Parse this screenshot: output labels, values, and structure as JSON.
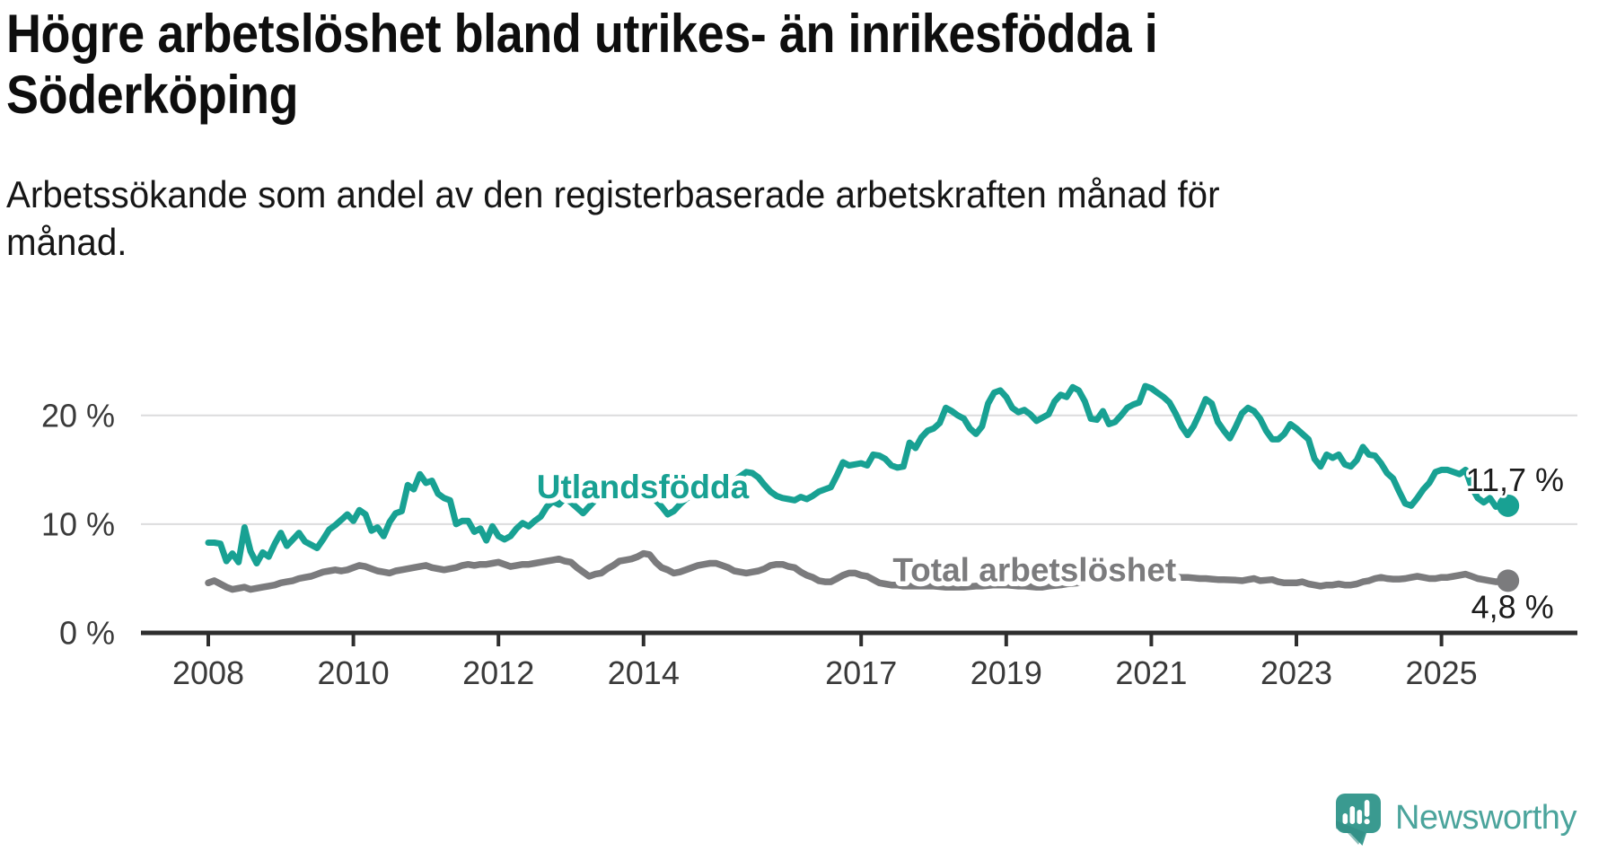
{
  "header": {
    "title_lines": [
      "Högre arbetslöshet bland utrikes- än inrikesfödda i",
      "Söderköping"
    ],
    "subtitle_lines": [
      "Arbetssökande som andel av den registerbaserade arbetskraften månad för",
      "månad."
    ]
  },
  "chart_data": {
    "type": "line",
    "title": "Högre arbetslöshet bland utrikes- än inrikesfödda i Söderköping",
    "subtitle": "Arbetssökande som andel av den registerbaserade arbetskraften månad för månad.",
    "grid": "horizontal-only",
    "legend": "inline-series-labels",
    "x_axis": {
      "start_year": 2008,
      "step_months": 1,
      "tick_years": [
        2008,
        2010,
        2012,
        2014,
        2017,
        2019,
        2021,
        2023,
        2025
      ],
      "tick_labels": [
        "2008",
        "2010",
        "2012",
        "2014",
        "2017",
        "2019",
        "2021",
        "2023",
        "2025"
      ]
    },
    "y_axis": {
      "unit": "%",
      "ylim": [
        0,
        24
      ],
      "ticks": [
        {
          "value": 0,
          "label": "0 %"
        },
        {
          "value": 10,
          "label": "10 %"
        },
        {
          "value": 20,
          "label": "20 %"
        }
      ]
    },
    "series": [
      {
        "name": "Utlandsfödda",
        "color": "#18A193",
        "end_value": 11.7,
        "end_label": "11,7 %",
        "label_anchor": {
          "year": 2013.99,
          "value": 13.4
        },
        "values": [
          8.3,
          8.3,
          8.2,
          6.6,
          7.3,
          6.5,
          9.7,
          7.5,
          6.4,
          7.4,
          7.0,
          8.2,
          9.2,
          8.0,
          8.6,
          9.2,
          8.4,
          8.1,
          7.8,
          8.6,
          9.5,
          9.9,
          10.4,
          10.9,
          10.3,
          11.3,
          10.9,
          9.4,
          9.7,
          8.9,
          10.2,
          11.0,
          11.2,
          13.6,
          13.2,
          14.6,
          13.8,
          14.0,
          12.8,
          12.4,
          12.2,
          10.0,
          10.3,
          10.3,
          9.3,
          9.6,
          8.5,
          9.8,
          8.9,
          8.6,
          8.9,
          9.6,
          10.1,
          9.8,
          10.3,
          10.7,
          11.6,
          12.1,
          11.8,
          12.4,
          12.0,
          11.5,
          11.0,
          11.6,
          12.2,
          12.8,
          12.5,
          12.9,
          13.2,
          12.8,
          13.0,
          13.3,
          13.0,
          12.6,
          12.2,
          11.6,
          10.9,
          11.2,
          11.8,
          12.3,
          12.7,
          12.4,
          12.9,
          13.2,
          13.0,
          13.3,
          13.6,
          14.0,
          14.4,
          14.8,
          14.7,
          14.3,
          13.6,
          13.0,
          12.6,
          12.4,
          12.3,
          12.2,
          12.5,
          12.3,
          12.6,
          13.0,
          13.2,
          13.4,
          14.5,
          15.7,
          15.4,
          15.5,
          15.6,
          15.4,
          16.4,
          16.3,
          16.0,
          15.4,
          15.2,
          15.3,
          17.5,
          17.0,
          18.0,
          18.6,
          18.8,
          19.3,
          20.7,
          20.4,
          20.0,
          19.7,
          18.8,
          18.3,
          19.0,
          21.1,
          22.1,
          22.3,
          21.7,
          20.7,
          20.3,
          20.5,
          20.1,
          19.5,
          19.8,
          20.1,
          21.3,
          21.9,
          21.7,
          22.6,
          22.3,
          21.3,
          19.7,
          19.6,
          20.4,
          19.2,
          19.4,
          20.0,
          20.7,
          21.0,
          21.2,
          22.7,
          22.5,
          22.1,
          21.7,
          21.2,
          20.2,
          19.0,
          18.2,
          19.0,
          20.2,
          21.5,
          21.1,
          19.4,
          18.6,
          17.9,
          19.0,
          20.2,
          20.7,
          20.4,
          19.7,
          18.6,
          17.8,
          17.8,
          18.3,
          19.2,
          18.8,
          18.3,
          17.8,
          16.0,
          15.3,
          16.4,
          16.1,
          16.4,
          15.5,
          15.3,
          15.9,
          17.1,
          16.4,
          16.3,
          15.6,
          14.7,
          14.2,
          13.0,
          11.9,
          11.7,
          12.4,
          13.2,
          13.8,
          14.8,
          15.0,
          15.0,
          14.8,
          14.6,
          15.0,
          13.4,
          12.4,
          12.0,
          12.4,
          11.6,
          11.8,
          11.7
        ]
      },
      {
        "name": "Total arbetslöshet",
        "color": "#7B7B7D",
        "end_value": 4.8,
        "end_label": "4,8 %",
        "label_anchor": {
          "year": 2019.39,
          "value": 5.8
        },
        "values": [
          4.6,
          4.8,
          4.5,
          4.2,
          4.0,
          4.1,
          4.2,
          4.0,
          4.1,
          4.2,
          4.3,
          4.4,
          4.6,
          4.7,
          4.8,
          5.0,
          5.1,
          5.2,
          5.4,
          5.6,
          5.7,
          5.8,
          5.7,
          5.8,
          6.0,
          6.2,
          6.1,
          5.9,
          5.7,
          5.6,
          5.5,
          5.7,
          5.8,
          5.9,
          6.0,
          6.1,
          6.2,
          6.0,
          5.9,
          5.8,
          5.9,
          6.0,
          6.2,
          6.3,
          6.2,
          6.3,
          6.3,
          6.4,
          6.5,
          6.3,
          6.1,
          6.2,
          6.3,
          6.3,
          6.4,
          6.5,
          6.6,
          6.7,
          6.8,
          6.6,
          6.5,
          6.0,
          5.6,
          5.2,
          5.4,
          5.5,
          5.9,
          6.2,
          6.6,
          6.7,
          6.8,
          7.0,
          7.3,
          7.2,
          6.5,
          6.0,
          5.8,
          5.5,
          5.6,
          5.8,
          6.0,
          6.2,
          6.3,
          6.4,
          6.4,
          6.2,
          6.0,
          5.7,
          5.6,
          5.5,
          5.6,
          5.7,
          5.9,
          6.2,
          6.3,
          6.3,
          6.1,
          6.0,
          5.6,
          5.3,
          5.1,
          4.8,
          4.7,
          4.7,
          5.0,
          5.3,
          5.5,
          5.5,
          5.3,
          5.2,
          4.9,
          4.6,
          4.5,
          4.4,
          4.4,
          4.3,
          4.3,
          4.3,
          4.3,
          4.3,
          4.3,
          4.25,
          4.2,
          4.2,
          4.2,
          4.2,
          4.25,
          4.3,
          4.3,
          4.35,
          4.4,
          4.4,
          4.4,
          4.35,
          4.3,
          4.3,
          4.25,
          4.2,
          4.2,
          4.3,
          4.35,
          4.4,
          4.5,
          4.55,
          4.6,
          4.8,
          5.0,
          5.3,
          5.6,
          5.7,
          5.8,
          5.8,
          5.7,
          5.6,
          5.5,
          5.45,
          5.4,
          5.35,
          5.3,
          5.2,
          5.15,
          5.1,
          5.1,
          5.05,
          5.0,
          5.0,
          4.95,
          4.9,
          4.9,
          4.87,
          4.85,
          4.8,
          4.9,
          5.0,
          4.8,
          4.85,
          4.9,
          4.7,
          4.6,
          4.6,
          4.6,
          4.7,
          4.5,
          4.4,
          4.3,
          4.4,
          4.4,
          4.5,
          4.4,
          4.4,
          4.5,
          4.7,
          4.8,
          5.0,
          5.1,
          5.0,
          4.95,
          4.95,
          5.0,
          5.1,
          5.2,
          5.1,
          5.0,
          5.0,
          5.1,
          5.1,
          5.2,
          5.3,
          5.4,
          5.2,
          5.0,
          4.9,
          4.8,
          4.7,
          4.75,
          4.8
        ]
      }
    ]
  },
  "appearance": {
    "axis_color": "#2e2e2e",
    "grid_color": "#dcdcdd",
    "tick_label_color": "#3a3a3a",
    "value_label_color": "#1c1c1c"
  },
  "branding": {
    "logo_text": "Newsworthy",
    "logo_icon": "newsworthy-speech-bubble-chart-icon",
    "logo_text_color": "#4BA49C",
    "logo_icon_color": "#3A9A90",
    "logo_icon_shadow_color": "#2F8B81"
  }
}
